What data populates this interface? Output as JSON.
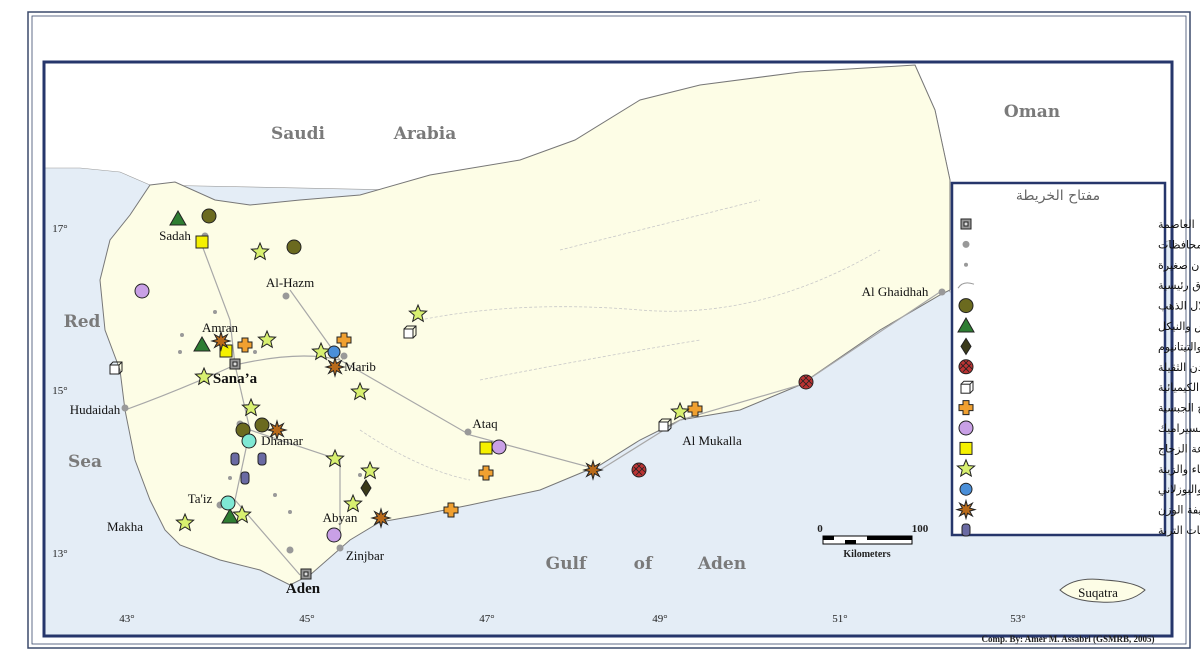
{
  "map": {
    "regions": [
      "Saudi",
      "Arabia",
      "Oman",
      "Red",
      "Sea",
      "Gulf",
      "of",
      "Aden"
    ],
    "places": [
      "Sadah",
      "Al-Hazm",
      "Amran",
      "Sana’a",
      "Marib",
      "Hudaidah",
      "Dhamar",
      "Ta'iz",
      "Makha",
      "Abyan",
      "Zinjbar",
      "Aden",
      "Ataq",
      "Al Mukalla",
      "Al Ghaidhah",
      "Suqatra"
    ],
    "lat_labels": [
      "17°",
      "15°",
      "13°"
    ],
    "lon_labels": [
      "43°",
      "45°",
      "47°",
      "49°",
      "51°",
      "53°"
    ],
    "scale": {
      "labels": [
        "0",
        "100"
      ],
      "unit": "Kilometers"
    },
    "legend": {
      "title": "مفتاح الخريطة",
      "items": [
        "العاصمة",
        "مراكز المحافظات",
        "مدن صغيرة",
        "طرق رئيسية",
        "استكشاف واستغلال الذهب",
        "استكشاف واستغلال النحاس والنيكل",
        "استكشاف واستغلال الحديد والتيتانيوم",
        "استكشاف واستغلال المعادن الثقيلة",
        "الصناعات الكيميائية",
        "صناعة الجبس والألواح الجبسية",
        "صناعة الخزف والسيراميك",
        "صناعة الزجاج",
        "إنتاج أحجار البناء والزينة",
        "صناعة الاسمنت البورتلندي والبوزلاني",
        "صناعة الخرسانة خفيفة الوزن",
        "إنتاج محسنات التربة"
      ]
    },
    "credit": "Comp. By: Amer M. Assabri (GSMRB, 2005)"
  }
}
